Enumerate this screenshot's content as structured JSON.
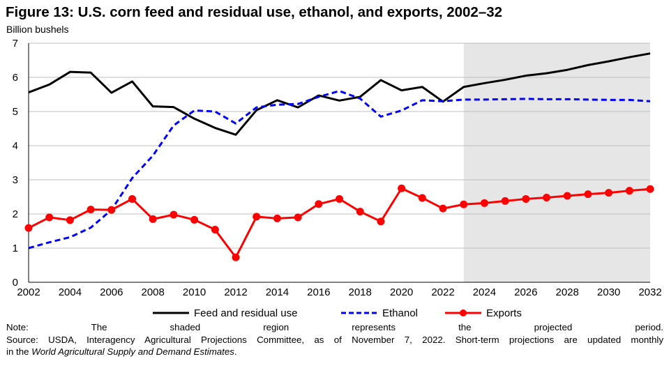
{
  "figure": {
    "title": "Figure 13: U.S. corn feed and residual use, ethanol, and exports, 2002–32",
    "unit_label": "Billion bushels"
  },
  "chart_data": {
    "type": "line",
    "title": "Figure 13: U.S. corn feed and residual use, ethanol, and exports, 2002–32",
    "ylabel": "Billion bushels",
    "xlabel": "",
    "xlim": [
      2002,
      2032
    ],
    "ylim": [
      0,
      7
    ],
    "x_ticks": [
      2002,
      2004,
      2006,
      2008,
      2010,
      2012,
      2014,
      2016,
      2018,
      2020,
      2022,
      2024,
      2026,
      2028,
      2030,
      2032
    ],
    "y_ticks": [
      0,
      1,
      2,
      3,
      4,
      5,
      6,
      7
    ],
    "grid": "horizontal",
    "legend_position": "bottom",
    "projected_region": {
      "from": 2023,
      "to": 2032,
      "color": "#e6e6e6"
    },
    "x": [
      2002,
      2003,
      2004,
      2005,
      2006,
      2007,
      2008,
      2009,
      2010,
      2011,
      2012,
      2013,
      2014,
      2015,
      2016,
      2017,
      2018,
      2019,
      2020,
      2021,
      2022,
      2023,
      2024,
      2025,
      2026,
      2027,
      2028,
      2029,
      2030,
      2031,
      2032
    ],
    "series": [
      {
        "name": "Feed and residual use",
        "style": "solid",
        "color": "#000000",
        "values": [
          5.56,
          5.79,
          6.16,
          6.14,
          5.55,
          5.88,
          5.15,
          5.13,
          4.79,
          4.52,
          4.32,
          5.04,
          5.33,
          5.12,
          5.47,
          5.32,
          5.43,
          5.92,
          5.62,
          5.72,
          5.29,
          5.72,
          5.83,
          5.93,
          6.05,
          6.12,
          6.22,
          6.36,
          6.47,
          6.59,
          6.7
        ]
      },
      {
        "name": "Ethanol",
        "style": "dashed",
        "color": "#0000ff",
        "values": [
          1.0,
          1.17,
          1.32,
          1.6,
          2.12,
          3.05,
          3.71,
          4.59,
          5.03,
          5.0,
          4.65,
          5.12,
          5.2,
          5.22,
          5.43,
          5.6,
          5.38,
          4.85,
          5.03,
          5.33,
          5.3,
          5.35,
          5.35,
          5.36,
          5.37,
          5.36,
          5.36,
          5.35,
          5.34,
          5.34,
          5.3
        ]
      },
      {
        "name": "Exports",
        "style": "solid-markers",
        "color": "#ff0000",
        "values": [
          1.59,
          1.9,
          1.82,
          2.13,
          2.12,
          2.44,
          1.85,
          1.98,
          1.83,
          1.54,
          0.73,
          1.92,
          1.87,
          1.9,
          2.29,
          2.44,
          2.07,
          1.78,
          2.75,
          2.47,
          2.16,
          2.28,
          2.32,
          2.38,
          2.44,
          2.48,
          2.53,
          2.58,
          2.62,
          2.68,
          2.73
        ]
      }
    ]
  },
  "notes": {
    "line1": "Note: The shaded region represents the projected period.",
    "line2": "Source: USDA, Interagency Agricultural Projections Committee, as of November 7, 2022. Short-term projections are updated monthly",
    "line3_prefix": "in the ",
    "line3_italic": "World Agricultural Supply and Demand Estimates",
    "line3_suffix": "."
  },
  "colors": {
    "shade": "#e6e6e6",
    "grid": "#bfbfbf",
    "axis": "#000000"
  }
}
